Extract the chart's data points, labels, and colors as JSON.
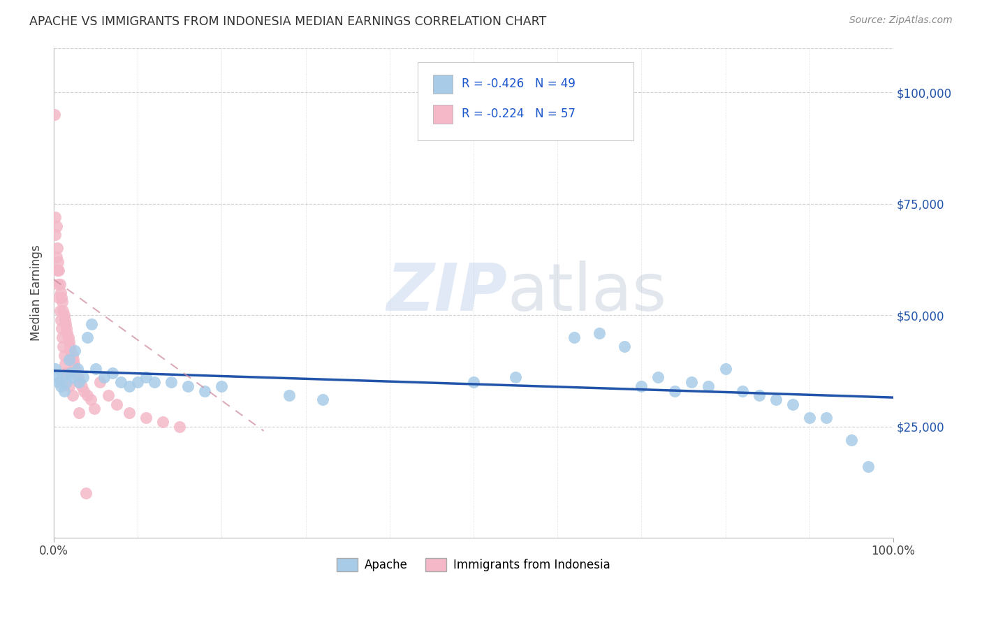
{
  "title": "APACHE VS IMMIGRANTS FROM INDONESIA MEDIAN EARNINGS CORRELATION CHART",
  "source": "Source: ZipAtlas.com",
  "ylabel": "Median Earnings",
  "ytick_labels": [
    "$25,000",
    "$50,000",
    "$75,000",
    "$100,000"
  ],
  "ytick_values": [
    25000,
    50000,
    75000,
    100000
  ],
  "xtick_labels": [
    "0.0%",
    "100.0%"
  ],
  "xlim": [
    0,
    1.0
  ],
  "ylim": [
    0,
    110000
  ],
  "watermark_zip": "ZIP",
  "watermark_atlas": "atlas",
  "legend_apache": "Apache",
  "legend_indonesia": "Immigrants from Indonesia",
  "apache_R": "-0.426",
  "apache_N": "49",
  "indonesia_R": "-0.224",
  "indonesia_N": "57",
  "apache_color": "#a8cce8",
  "indonesia_color": "#f4b8c8",
  "apache_line_color": "#2255aa",
  "indonesia_line_color": "#cc8899",
  "background_color": "#ffffff",
  "grid_color": "#cccccc",
  "apache_scatter_x": [
    0.002,
    0.004,
    0.006,
    0.008,
    0.01,
    0.012,
    0.015,
    0.018,
    0.02,
    0.022,
    0.025,
    0.028,
    0.03,
    0.035,
    0.04,
    0.045,
    0.05,
    0.06,
    0.07,
    0.08,
    0.09,
    0.1,
    0.11,
    0.12,
    0.14,
    0.16,
    0.18,
    0.2,
    0.28,
    0.32,
    0.5,
    0.55,
    0.62,
    0.65,
    0.68,
    0.7,
    0.72,
    0.74,
    0.76,
    0.78,
    0.8,
    0.82,
    0.84,
    0.86,
    0.88,
    0.9,
    0.92,
    0.95,
    0.97
  ],
  "apache_scatter_y": [
    38000,
    36000,
    35000,
    34000,
    36000,
    33000,
    35000,
    40000,
    37000,
    36000,
    42000,
    38000,
    35000,
    36000,
    45000,
    48000,
    38000,
    36000,
    37000,
    35000,
    34000,
    35000,
    36000,
    35000,
    35000,
    34000,
    33000,
    34000,
    32000,
    31000,
    35000,
    36000,
    45000,
    46000,
    43000,
    34000,
    36000,
    33000,
    35000,
    34000,
    38000,
    33000,
    32000,
    31000,
    30000,
    27000,
    27000,
    22000,
    16000
  ],
  "indonesia_scatter_x": [
    0.001,
    0.002,
    0.003,
    0.004,
    0.005,
    0.006,
    0.007,
    0.008,
    0.009,
    0.01,
    0.011,
    0.012,
    0.013,
    0.014,
    0.015,
    0.016,
    0.017,
    0.018,
    0.019,
    0.02,
    0.021,
    0.022,
    0.023,
    0.024,
    0.025,
    0.027,
    0.029,
    0.031,
    0.033,
    0.036,
    0.04,
    0.044,
    0.048,
    0.055,
    0.065,
    0.075,
    0.09,
    0.11,
    0.13,
    0.15,
    0.002,
    0.003,
    0.004,
    0.005,
    0.006,
    0.007,
    0.008,
    0.009,
    0.01,
    0.011,
    0.012,
    0.013,
    0.015,
    0.018,
    0.022,
    0.03,
    0.038
  ],
  "indonesia_scatter_y": [
    95000,
    72000,
    70000,
    65000,
    62000,
    60000,
    57000,
    55000,
    54000,
    53000,
    51000,
    50000,
    49000,
    48000,
    47000,
    46000,
    45000,
    44000,
    43000,
    42000,
    41000,
    41000,
    40000,
    39000,
    38000,
    37000,
    36000,
    35000,
    34000,
    33000,
    32000,
    31000,
    29000,
    35000,
    32000,
    30000,
    28000,
    27000,
    26000,
    25000,
    68000,
    63000,
    60000,
    57000,
    54000,
    51000,
    49000,
    47000,
    45000,
    43000,
    41000,
    39000,
    37000,
    34000,
    32000,
    28000,
    10000
  ]
}
